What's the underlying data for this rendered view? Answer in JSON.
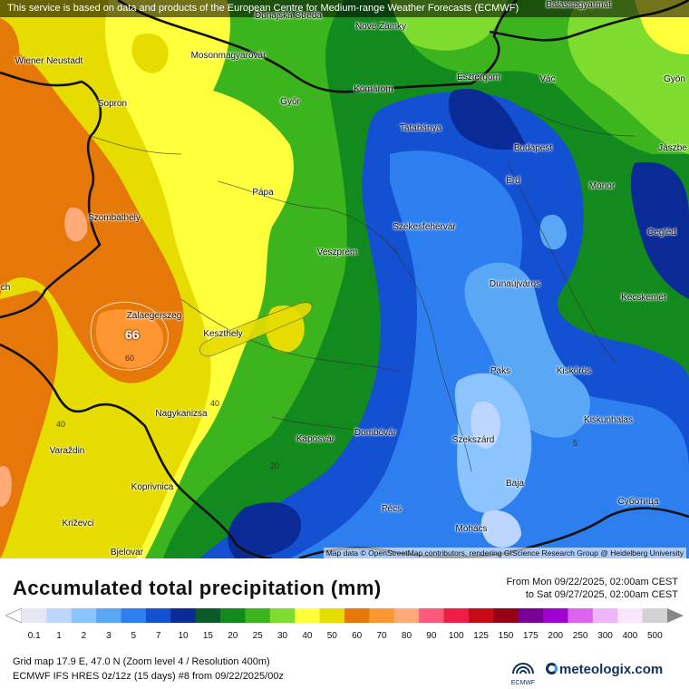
{
  "attribution": "This service is based on data and products of the European Centre for Medium-range Weather Forecasts (ECMWF)",
  "map_credit": "Map data © OpenStreetMap contributors, rendering GIScience Research Group @ Heidelberg University",
  "cities": [
    {
      "name": "Balassagyarmat"
    },
    {
      "name": "Dunajská Streda"
    },
    {
      "name": "Nové Zámky"
    },
    {
      "name": "Wiener Neustadt"
    },
    {
      "name": "Mosonmagyaróvár"
    },
    {
      "name": "Esztergom"
    },
    {
      "name": "Vác"
    },
    {
      "name": "Gyön"
    },
    {
      "name": "Komárom"
    },
    {
      "name": "Győr"
    },
    {
      "name": "Sopron"
    },
    {
      "name": "Tatabánya"
    },
    {
      "name": "Budapest"
    },
    {
      "name": "Jászbe"
    },
    {
      "name": "Pápa"
    },
    {
      "name": "Érd"
    },
    {
      "name": "Monor"
    },
    {
      "name": "Szombathely"
    },
    {
      "name": "Székesfehérvár"
    },
    {
      "name": "Cegléd"
    },
    {
      "name": "Veszprém"
    },
    {
      "name": "ch"
    },
    {
      "name": "Dunaújváros"
    },
    {
      "name": "Kecskemét"
    },
    {
      "name": "Zalaegerszeg"
    },
    {
      "name": "Keszthely"
    },
    {
      "name": "Paks"
    },
    {
      "name": "Kiskőrös"
    },
    {
      "name": "Nagykanizsa"
    },
    {
      "name": "Kiskunhalas"
    },
    {
      "name": "Kaposvár"
    },
    {
      "name": "Dombóvár"
    },
    {
      "name": "Szekszárd"
    },
    {
      "name": "Varaždin"
    },
    {
      "name": "Koprivnica"
    },
    {
      "name": "Baja"
    },
    {
      "name": "Суботица"
    },
    {
      "name": "Pécs"
    },
    {
      "name": "Križevci"
    },
    {
      "name": "Mohács"
    },
    {
      "name": "Bjelovar"
    }
  ],
  "contour_labels": [
    "60",
    "40",
    "40",
    "20",
    "5"
  ],
  "max_value": "66",
  "legend": {
    "title": "Accumulated total precipitation (mm)",
    "from": "From Mon 09/22/2025, 02:00am CEST",
    "to": "to Sat 09/27/2025, 02:00am CEST",
    "values": [
      "0.1",
      "1",
      "2",
      "3",
      "5",
      "7",
      "10",
      "15",
      "20",
      "25",
      "30",
      "40",
      "50",
      "60",
      "70",
      "80",
      "90",
      "100",
      "125",
      "150",
      "175",
      "200",
      "250",
      "300",
      "400",
      "500"
    ],
    "colors": [
      "#e6e6f5",
      "#bcd6ff",
      "#8cc4ff",
      "#5aa8f5",
      "#2d7ff0",
      "#1450d2",
      "#0a2a96",
      "#0a5a2a",
      "#138a1e",
      "#3cb41e",
      "#7ddc2d",
      "#ffff3c",
      "#e6dc00",
      "#e6780a",
      "#ff9632",
      "#ffaa78",
      "#ff5a78",
      "#f01e46",
      "#c80a14",
      "#960014",
      "#780096",
      "#a000d2",
      "#dc64f0",
      "#f0b4fa",
      "#fae6fa",
      "#d2d2d2"
    ],
    "scale_end_left": "#ffffff",
    "scale_end_right": "#888888"
  },
  "footer": {
    "line1": "Grid map 17.9 E, 47.0 N (Zoom level 4 / Resolution 400m)",
    "line2": "ECMWF IFS HRES 0z/12z (15 days) #8 from  09/22/2025/00z",
    "ecmwf_label": "ECMWF",
    "brand": "meteologix.com"
  }
}
